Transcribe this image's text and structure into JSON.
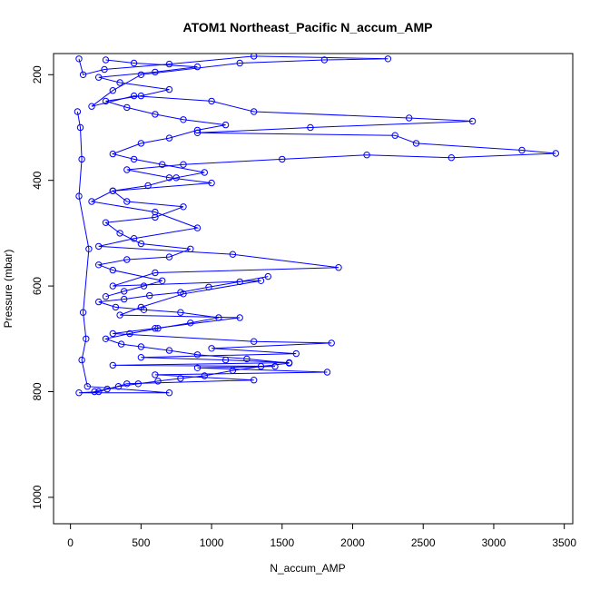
{
  "chart_data": {
    "type": "scatter",
    "title": "ATOM1 Northeast_Pacific N_accum_AMP",
    "xlabel": "N_accum_AMP",
    "ylabel": "Pressure (mbar)",
    "xlim": [
      -120,
      3560
    ],
    "ylim": [
      1050,
      160
    ],
    "y_reversed": true,
    "x_ticks": [
      0,
      500,
      1000,
      1500,
      2000,
      2500,
      3000,
      3500
    ],
    "y_ticks": [
      200,
      400,
      600,
      800,
      1000
    ],
    "marker": "open-circle",
    "connected": true,
    "color": "#0000FF",
    "series": [
      {
        "points": [
          [
            60,
            170
          ],
          [
            90,
            200
          ],
          [
            240,
            190
          ],
          [
            700,
            180
          ],
          [
            1300,
            165
          ],
          [
            2250,
            170
          ],
          [
            1800,
            172
          ],
          [
            1200,
            178
          ],
          [
            500,
            200
          ],
          [
            300,
            230
          ],
          [
            150,
            260
          ],
          [
            450,
            240
          ],
          [
            1000,
            250
          ],
          [
            1300,
            270
          ],
          [
            2400,
            282
          ],
          [
            2850,
            288
          ],
          [
            1700,
            300
          ],
          [
            900,
            310
          ],
          [
            2300,
            315
          ],
          [
            2450,
            330
          ],
          [
            3200,
            343
          ],
          [
            3440,
            349
          ],
          [
            2700,
            357
          ],
          [
            2100,
            352
          ],
          [
            1500,
            360
          ],
          [
            800,
            370
          ],
          [
            400,
            380
          ],
          [
            700,
            395
          ],
          [
            1000,
            405
          ],
          [
            300,
            420
          ],
          [
            150,
            440
          ],
          [
            600,
            460
          ],
          [
            900,
            490
          ],
          [
            450,
            510
          ],
          [
            200,
            525
          ],
          [
            1150,
            540
          ],
          [
            1900,
            565
          ],
          [
            600,
            575
          ],
          [
            300,
            600
          ],
          [
            1350,
            590
          ],
          [
            800,
            615
          ],
          [
            500,
            640
          ],
          [
            350,
            655
          ],
          [
            1200,
            660
          ],
          [
            600,
            680
          ],
          [
            300,
            690
          ],
          [
            1300,
            705
          ],
          [
            1850,
            708
          ],
          [
            1000,
            718
          ],
          [
            1600,
            728
          ],
          [
            500,
            735
          ],
          [
            1100,
            740
          ],
          [
            1550,
            745
          ],
          [
            300,
            750
          ],
          [
            1450,
            752
          ],
          [
            900,
            755
          ],
          [
            1820,
            763
          ],
          [
            600,
            768
          ],
          [
            1300,
            778
          ],
          [
            400,
            785
          ],
          [
            200,
            800
          ],
          [
            60,
            802
          ],
          [
            700,
            802
          ],
          [
            120,
            790
          ],
          [
            80,
            740
          ],
          [
            110,
            700
          ],
          [
            90,
            650
          ],
          [
            130,
            530
          ],
          [
            60,
            430
          ],
          [
            80,
            360
          ],
          [
            70,
            300
          ],
          [
            50,
            270
          ]
        ]
      },
      {
        "points": [
          [
            250,
            620
          ],
          [
            380,
            610
          ],
          [
            520,
            600
          ],
          [
            650,
            590
          ],
          [
            300,
            570
          ],
          [
            200,
            560
          ],
          [
            400,
            550
          ],
          [
            700,
            545
          ],
          [
            850,
            530
          ],
          [
            500,
            520
          ],
          [
            350,
            500
          ],
          [
            250,
            480
          ],
          [
            600,
            470
          ],
          [
            800,
            450
          ],
          [
            400,
            440
          ],
          [
            300,
            420
          ],
          [
            550,
            410
          ],
          [
            750,
            395
          ],
          [
            950,
            385
          ],
          [
            650,
            370
          ],
          [
            450,
            360
          ],
          [
            300,
            350
          ],
          [
            500,
            330
          ],
          [
            700,
            320
          ],
          [
            900,
            305
          ],
          [
            1100,
            295
          ],
          [
            800,
            285
          ],
          [
            600,
            275
          ],
          [
            400,
            262
          ],
          [
            250,
            250
          ],
          [
            500,
            240
          ],
          [
            700,
            228
          ],
          [
            350,
            215
          ],
          [
            200,
            205
          ],
          [
            600,
            195
          ],
          [
            900,
            185
          ],
          [
            450,
            178
          ],
          [
            250,
            172
          ]
        ]
      },
      {
        "points": [
          [
            170,
            800
          ],
          [
            260,
            795
          ],
          [
            340,
            790
          ],
          [
            480,
            785
          ],
          [
            620,
            780
          ],
          [
            780,
            775
          ],
          [
            950,
            770
          ],
          [
            1150,
            760
          ],
          [
            1350,
            752
          ],
          [
            1550,
            746
          ],
          [
            1250,
            738
          ],
          [
            900,
            730
          ],
          [
            700,
            722
          ],
          [
            500,
            715
          ],
          [
            360,
            710
          ],
          [
            250,
            700
          ],
          [
            420,
            690
          ],
          [
            620,
            680
          ],
          [
            850,
            670
          ],
          [
            1050,
            660
          ],
          [
            780,
            650
          ],
          [
            520,
            645
          ],
          [
            320,
            640
          ],
          [
            200,
            630
          ],
          [
            380,
            625
          ],
          [
            560,
            618
          ],
          [
            780,
            612
          ],
          [
            980,
            602
          ],
          [
            1200,
            592
          ],
          [
            1400,
            582
          ]
        ]
      }
    ]
  }
}
